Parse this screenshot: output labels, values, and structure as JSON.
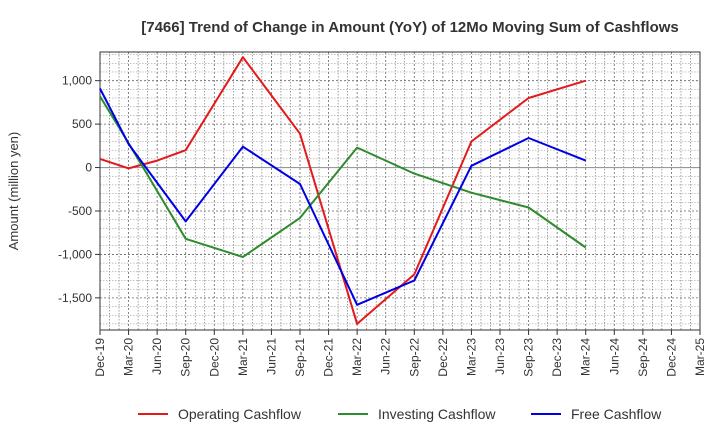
{
  "chart_data": {
    "type": "line",
    "title": "[7466]  Trend of Change in Amount (YoY) of 12Mo Moving Sum of Cashflows",
    "ylabel": "Amount (million yen)",
    "xlabel": "",
    "categories": [
      "Dec-19",
      "Mar-20",
      "Jun-20",
      "Sep-20",
      "Dec-20",
      "Mar-21",
      "Jun-21",
      "Sep-21",
      "Dec-21",
      "Mar-22",
      "Jun-22",
      "Sep-22",
      "Dec-22",
      "Mar-23",
      "Jun-23",
      "Sep-23",
      "Dec-23",
      "Mar-24",
      "Jun-24",
      "Sep-24",
      "Dec-24",
      "Mar-25"
    ],
    "yticks": [
      -1500,
      -1000,
      -500,
      0,
      500,
      1000
    ],
    "ytick_labels": [
      "-1,500",
      "-1,000",
      "-500",
      "0",
      "500",
      "1,000"
    ],
    "ylim": [
      -1870,
      1330
    ],
    "grid": true,
    "legend_position": "bottom",
    "series": [
      {
        "name": "Operating Cashflow",
        "color": "#e31a1c",
        "values": [
          100,
          -10,
          80,
          200,
          null,
          1270,
          null,
          390,
          null,
          -1800,
          null,
          -1230,
          null,
          300,
          null,
          800,
          null,
          1000,
          null,
          null,
          null,
          null
        ]
      },
      {
        "name": "Investing Cashflow",
        "color": "#2e8b2e",
        "values": [
          820,
          280,
          null,
          -820,
          null,
          -1030,
          null,
          -580,
          null,
          230,
          null,
          -70,
          null,
          -290,
          null,
          -460,
          null,
          -920,
          null,
          null,
          null,
          null
        ]
      },
      {
        "name": "Free Cashflow",
        "color": "#0000e6",
        "values": [
          910,
          270,
          null,
          -620,
          null,
          240,
          null,
          -190,
          null,
          -1580,
          null,
          -1300,
          null,
          20,
          null,
          340,
          null,
          80,
          null,
          null,
          null,
          null
        ]
      }
    ]
  }
}
